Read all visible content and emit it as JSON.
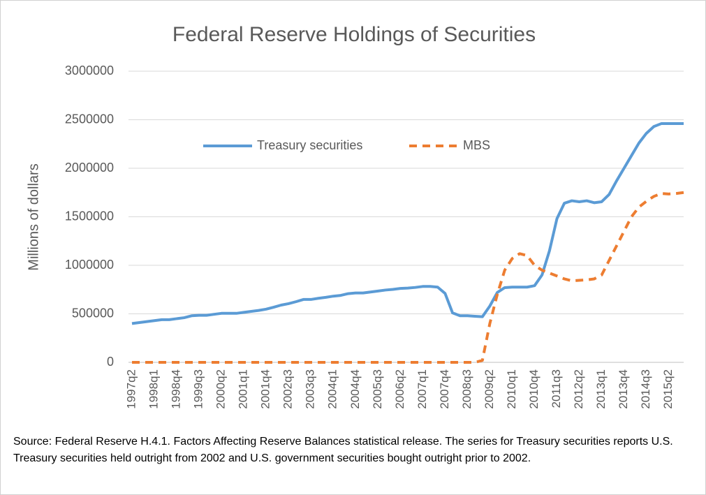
{
  "chart_data": {
    "type": "line",
    "title": "Federal Reserve Holdings of Securities",
    "ylabel": "Millions of dollars",
    "source": "Source:  Federal Reserve H.4.1. Factors Affecting Reserve Balances statistical release.  The series for Treasury securities reports U.S. Treasury securities held outright from 2002 and U.S. government  securities bought outright prior to 2002.",
    "categories": [
      "1997q2",
      null,
      null,
      "1998q1",
      null,
      null,
      "1998q4",
      null,
      null,
      "1999q3",
      null,
      null,
      "2000q2",
      null,
      null,
      "2001q1",
      null,
      null,
      "2001q4",
      null,
      null,
      "2002q3",
      null,
      null,
      "2003q3",
      null,
      null,
      "2004q1",
      null,
      null,
      "2004q4",
      null,
      null,
      "2005q3",
      null,
      null,
      "2006q2",
      null,
      null,
      "2007q1",
      null,
      null,
      "2007q4",
      null,
      null,
      "2008q3",
      null,
      null,
      "2009q2",
      null,
      null,
      "2010q1",
      null,
      null,
      "2010q4",
      null,
      null,
      "2011q3",
      null,
      null,
      "2012q2",
      null,
      null,
      "2013q1",
      null,
      null,
      "2013q4",
      null,
      null,
      "2014q3",
      null,
      null,
      "2015q2",
      null,
      null
    ],
    "series": [
      {
        "name": "Treasury securities",
        "color": "#5b9bd5",
        "dashed": false,
        "values": [
          400000,
          410000,
          420000,
          430000,
          440000,
          440000,
          450000,
          460000,
          480000,
          485000,
          485000,
          495000,
          505000,
          505000,
          505000,
          515000,
          525000,
          535000,
          548000,
          568000,
          590000,
          605000,
          625000,
          648000,
          648000,
          660000,
          670000,
          682000,
          690000,
          708000,
          715000,
          715000,
          725000,
          735000,
          745000,
          752000,
          762000,
          765000,
          772000,
          782000,
          782000,
          775000,
          710000,
          510000,
          480000,
          480000,
          475000,
          470000,
          580000,
          720000,
          770000,
          775000,
          775000,
          775000,
          790000,
          900000,
          1150000,
          1480000,
          1640000,
          1665000,
          1655000,
          1665000,
          1645000,
          1655000,
          1730000,
          1870000,
          2000000,
          2130000,
          2260000,
          2360000,
          2430000,
          2460000,
          2460000,
          2460000,
          2460000
        ]
      },
      {
        "name": "MBS",
        "color": "#ed7d31",
        "dashed": true,
        "values": [
          0,
          0,
          0,
          0,
          0,
          0,
          0,
          0,
          0,
          0,
          0,
          0,
          0,
          0,
          0,
          0,
          0,
          0,
          0,
          0,
          0,
          0,
          0,
          0,
          0,
          0,
          0,
          0,
          0,
          0,
          0,
          0,
          0,
          0,
          0,
          0,
          0,
          0,
          0,
          0,
          0,
          0,
          0,
          0,
          0,
          0,
          0,
          20000,
          400000,
          700000,
          950000,
          1070000,
          1120000,
          1100000,
          1000000,
          950000,
          920000,
          890000,
          860000,
          840000,
          845000,
          850000,
          860000,
          900000,
          1050000,
          1200000,
          1350000,
          1500000,
          1600000,
          1660000,
          1710000,
          1740000,
          1735000,
          1740000,
          1750000
        ]
      }
    ],
    "ylim": [
      0,
      3000000
    ],
    "yticks": [
      0,
      500000,
      1000000,
      1500000,
      2000000,
      2500000,
      3000000
    ],
    "grid": true,
    "legend": "top"
  }
}
